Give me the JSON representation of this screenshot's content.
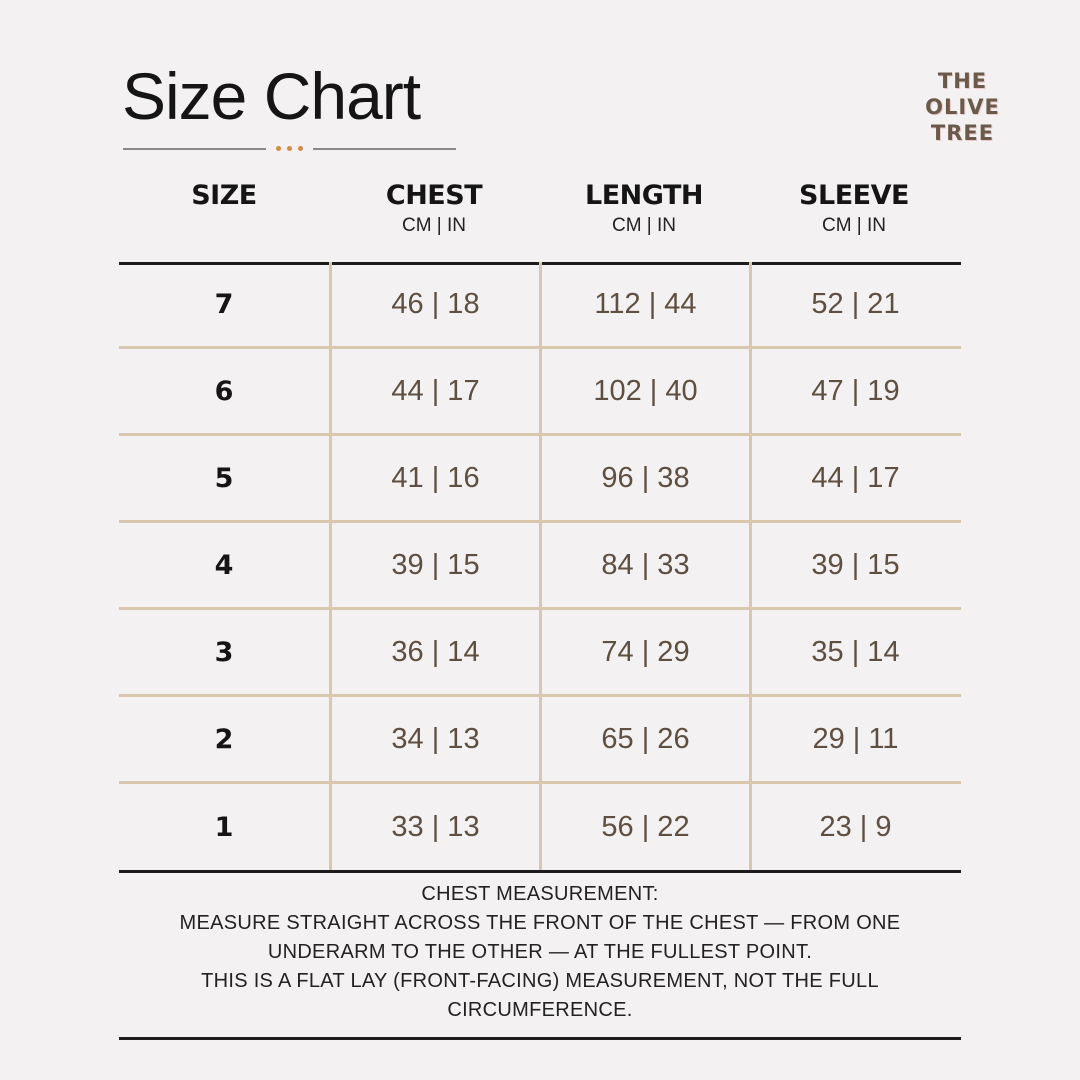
{
  "title": "Size Chart",
  "logo": {
    "line1": "THE",
    "line2": "OLIVE",
    "line3": "TREE"
  },
  "colors": {
    "background": "#f3f1f2",
    "accent_dots": "#d58b3f",
    "grid_lines": "#d9c8ae",
    "value_text": "#5f4f40"
  },
  "headers": [
    {
      "label": "SIZE",
      "unit": ""
    },
    {
      "label": "CHEST",
      "unit": "CM | IN"
    },
    {
      "label": "LENGTH",
      "unit": "CM | IN"
    },
    {
      "label": "SLEEVE",
      "unit": "CM | IN"
    }
  ],
  "rows": [
    [
      "7",
      "46 | 18",
      "112 | 44",
      "52 | 21"
    ],
    [
      "6",
      "44 | 17",
      "102 | 40",
      "47 | 19"
    ],
    [
      "5",
      "41 | 16",
      "96 | 38",
      "44 | 17"
    ],
    [
      "4",
      "39 | 15",
      "84 | 33",
      "39 | 15"
    ],
    [
      "3",
      "36 | 14",
      "74 | 29",
      "35 | 14"
    ],
    [
      "2",
      "34 | 13",
      "65 | 26",
      "29 | 11"
    ],
    [
      "1",
      "33 | 13",
      "56 | 22",
      "23 | 9"
    ]
  ],
  "note": [
    "CHEST MEASUREMENT:",
    "MEASURE STRAIGHT ACROSS THE FRONT OF THE CHEST — FROM ONE",
    "UNDERARM TO THE OTHER — AT THE FULLEST POINT.",
    "THIS IS A FLAT LAY (FRONT-FACING) MEASUREMENT, NOT THE FULL",
    "CIRCUMFERENCE."
  ]
}
